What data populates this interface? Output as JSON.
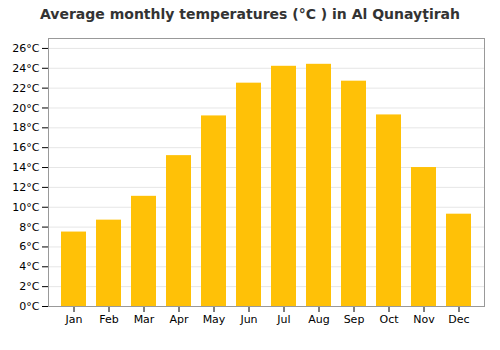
{
  "chart_data": {
    "type": "bar",
    "title": "Average monthly temperatures (°C ) in Al Qunayṭirah",
    "categories": [
      "Jan",
      "Feb",
      "Mar",
      "Apr",
      "May",
      "Jun",
      "Jul",
      "Aug",
      "Sep",
      "Oct",
      "Nov",
      "Dec"
    ],
    "values": [
      7.5,
      8.7,
      11.1,
      15.2,
      19.2,
      22.5,
      24.2,
      24.4,
      22.7,
      19.3,
      14.0,
      9.3
    ],
    "color": "#FFC107",
    "ylim": [
      0,
      27
    ],
    "yticks": [
      {
        "value": 0,
        "label": "0°C"
      },
      {
        "value": 2,
        "label": "2°C"
      },
      {
        "value": 4,
        "label": "4°C"
      },
      {
        "value": 6,
        "label": "6°C"
      },
      {
        "value": 8,
        "label": "8°C"
      },
      {
        "value": 10,
        "label": "10°C"
      },
      {
        "value": 12,
        "label": "12°C"
      },
      {
        "value": 14,
        "label": "14°C"
      },
      {
        "value": 16,
        "label": "16°C"
      },
      {
        "value": 18,
        "label": "18°C"
      },
      {
        "value": 20,
        "label": "20°C"
      },
      {
        "value": 22,
        "label": "22°C"
      },
      {
        "value": 24,
        "label": "24°C"
      },
      {
        "value": 26,
        "label": "26°C"
      }
    ],
    "grid": true
  }
}
